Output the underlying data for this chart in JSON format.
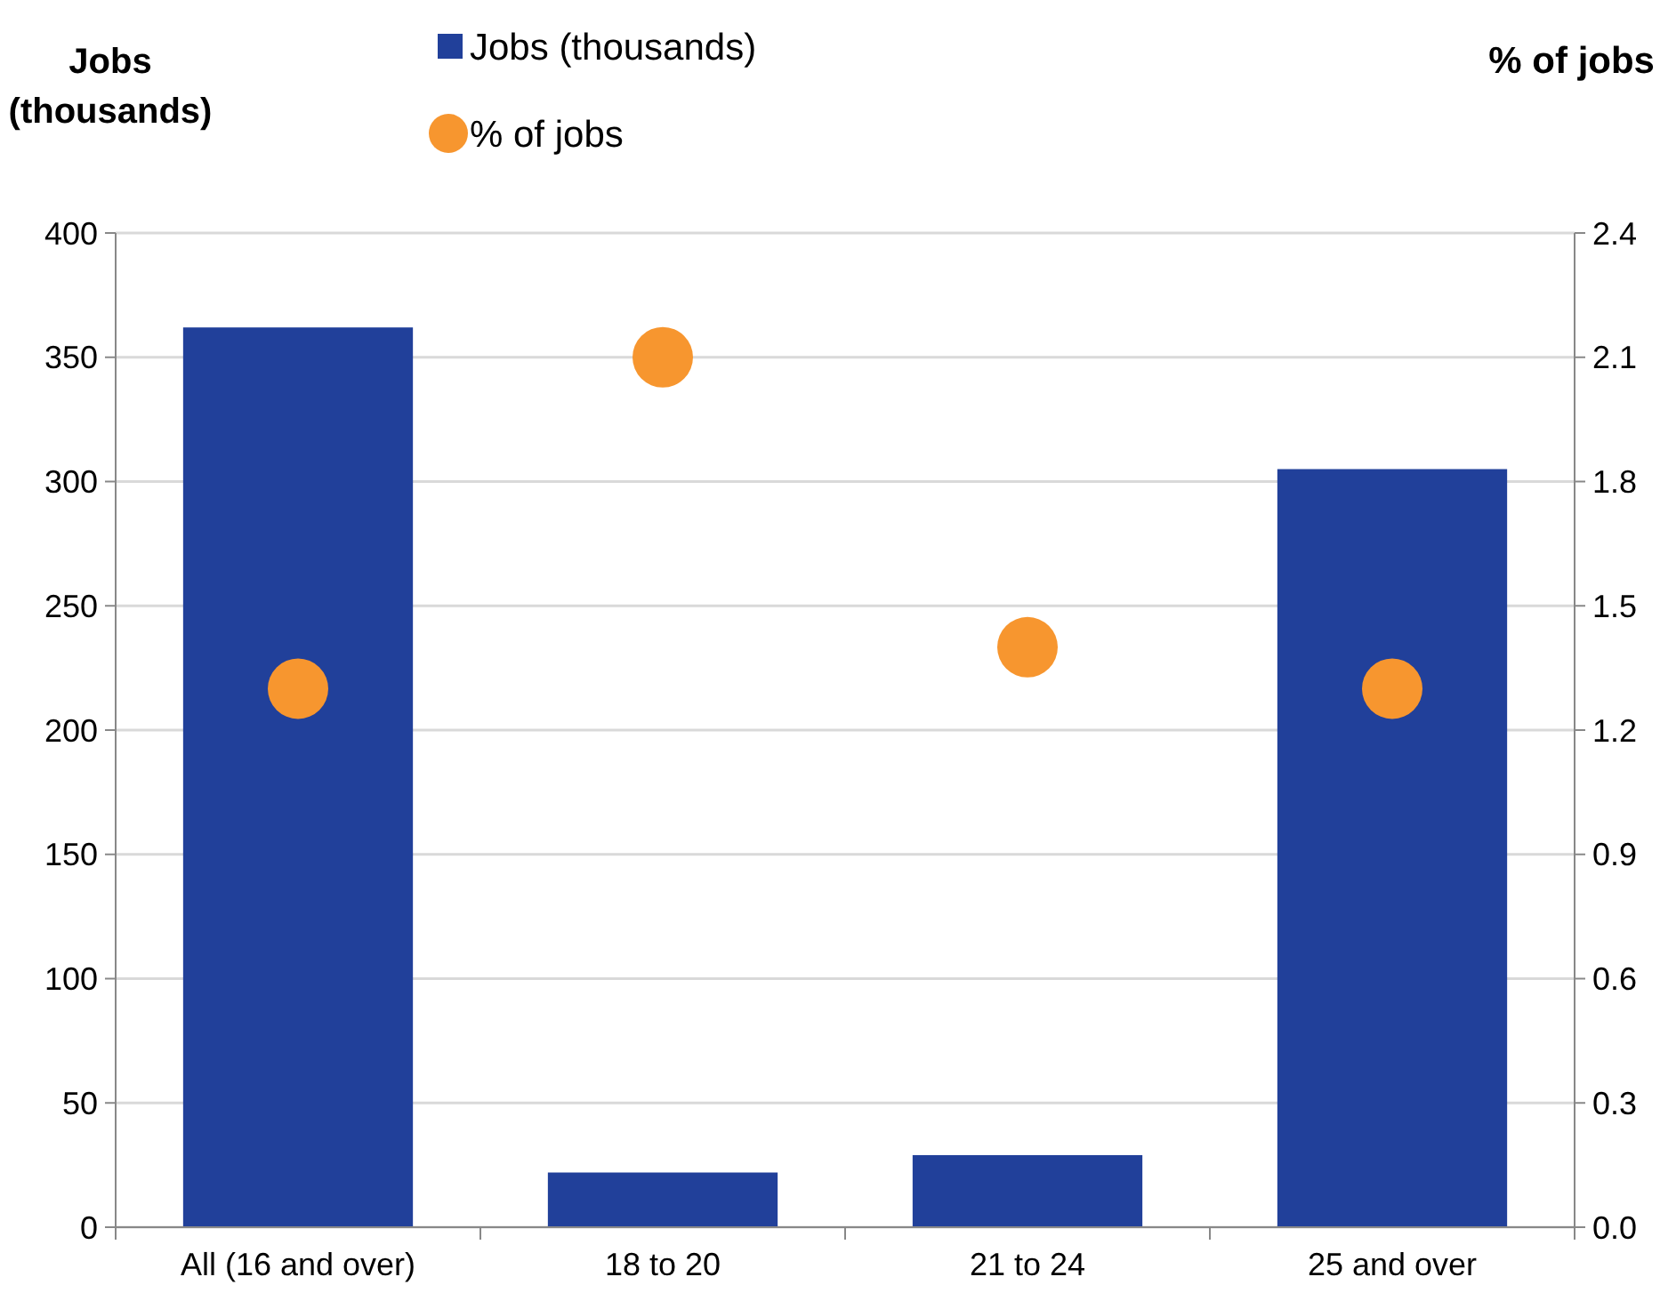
{
  "chart_data": {
    "type": "bar",
    "categories": [
      "All (16 and over)",
      "18 to 20",
      "21 to 24",
      "25 and over"
    ],
    "ylabel": "Jobs\n(thousands)",
    "y2label": "% of jobs",
    "series": [
      {
        "name": "Jobs (thousands)",
        "color": "#21409a",
        "values": [
          362,
          22,
          29,
          305
        ]
      },
      {
        "name": "% of jobs",
        "type": "scatter",
        "axis": "y2",
        "color": "#f7962f",
        "values": [
          1.3,
          2.1,
          1.4,
          1.3
        ]
      }
    ],
    "ylim": [
      0,
      400
    ],
    "yticks": [
      0,
      50,
      100,
      150,
      200,
      250,
      300,
      350,
      400
    ],
    "y2lim": [
      0,
      2.4
    ],
    "y2ticks": [
      {
        "value": 0,
        "label": "0.0"
      },
      {
        "value": 0.3,
        "label": "0.3"
      },
      {
        "value": 0.6,
        "label": "0.6"
      },
      {
        "value": 0.9,
        "label": "0.9"
      },
      {
        "value": 1.2,
        "label": "1.2"
      },
      {
        "value": 1.5,
        "label": "1.5"
      },
      {
        "value": 1.8,
        "label": "1.8"
      },
      {
        "value": 2.1,
        "label": "2.1"
      },
      {
        "value": 2.4,
        "label": "2.4"
      }
    ],
    "grid": "y",
    "legend": "top",
    "marker": "circle"
  }
}
